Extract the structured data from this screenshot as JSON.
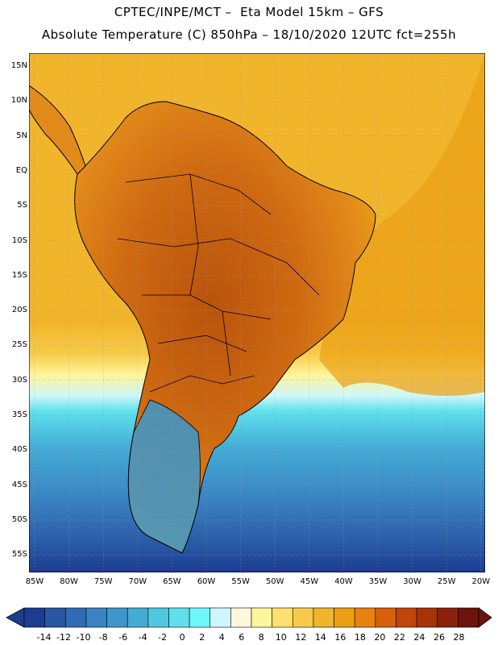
{
  "title_line1": "CPTEC/INPE/MCT –  Eta Model 15km – GFS",
  "title_line2": "Absolute Temperature (C) 850hPa – 18/10/2020 12UTC fct=255h",
  "lat_labels": [
    "15N",
    "10N",
    "5N",
    "EQ",
    "5S",
    "10S",
    "15S",
    "20S",
    "25S",
    "30S",
    "35S",
    "40S",
    "45S",
    "50S",
    "55S"
  ],
  "lon_labels": [
    "85W",
    "80W",
    "75W",
    "70W",
    "65W",
    "60W",
    "55W",
    "50W",
    "45W",
    "40W",
    "35W",
    "30W",
    "25W",
    "20W"
  ],
  "colorbar": {
    "colors": [
      "#1b3c8f",
      "#2957a4",
      "#2f6cb4",
      "#3a83c2",
      "#3d97cc",
      "#43acd5",
      "#4fc7e0",
      "#5fe0ec",
      "#6ff7fb",
      "#cff7fb",
      "#fff7dc",
      "#fff59b",
      "#fde070",
      "#f7cb4a",
      "#f1b52c",
      "#eba014",
      "#e6820e",
      "#d85f0b",
      "#c04608",
      "#a73309",
      "#8c210b",
      "#6b150c"
    ],
    "labels": [
      "-14",
      "-12",
      "-10",
      "-8",
      "-6",
      "-4",
      "-2",
      "0",
      "2",
      "4",
      "6",
      "8",
      "10",
      "12",
      "14",
      "16",
      "18",
      "20",
      "22",
      "24",
      "26",
      "28"
    ]
  },
  "colors": {
    "ocean_warm": "#f1b52c",
    "land_hot": "#c9600f",
    "land_warm": "#e28a1a",
    "cold_band": "#4fc7e0",
    "cold_deep": "#2f6cb4"
  }
}
